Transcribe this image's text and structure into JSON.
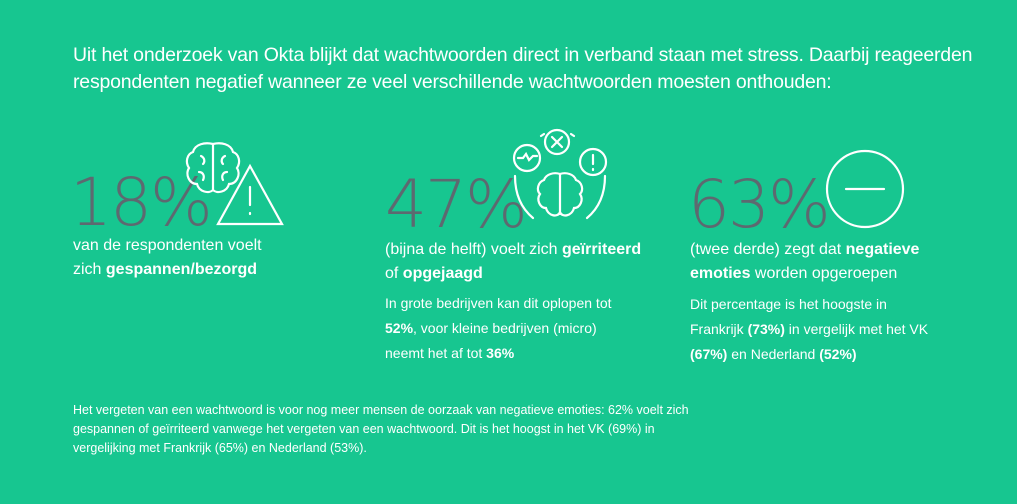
{
  "intro": "Uit het onderzoek van Okta blijkt dat wachtwoorden direct in verband staan met stress. Daarbij reageerden respondenten negatief wanneer ze veel verschillende wachtwoorden moesten onthouden:",
  "stats": [
    {
      "value": "18%",
      "lead": [
        "van de respondenten voelt zich ",
        "gespannen/bezorgd"
      ],
      "icon": "brain-warning-icon"
    },
    {
      "value": "47%",
      "lead": [
        "(bijna de helft) voelt zich ",
        "geïrriteerd",
        " of ",
        "opgejaagd"
      ],
      "sub": [
        "In grote bedrijven kan dit oplopen tot ",
        "52%",
        ", voor kleine bedrijven (micro) neemt het af tot ",
        "36%"
      ],
      "icon": "brain-alerts-icon"
    },
    {
      "value": "63%",
      "lead": [
        "(twee derde) zegt dat ",
        "negatieve emoties",
        " worden opgeroepen"
      ],
      "sub": [
        "Dit percentage is het hoogste in Frankrijk ",
        "(73%)",
        " in vergelijk met het VK ",
        "(67%)",
        " en Nederland ",
        "(52%)"
      ],
      "icon": "minus-circle-icon"
    }
  ],
  "footer": "Het vergeten van een wachtwoord is voor nog meer mensen de oorzaak van negatieve emoties: 62% voelt zich gespannen of geïrriteerd vanwege het vergeten van een wachtwoord. Dit is het hoogst in het VK (69%) in vergelijking met Frankrijk (65%) en Nederland (53%).",
  "colors": {
    "background": "#17c690",
    "number": "#5d6970",
    "text": "#ffffff"
  }
}
